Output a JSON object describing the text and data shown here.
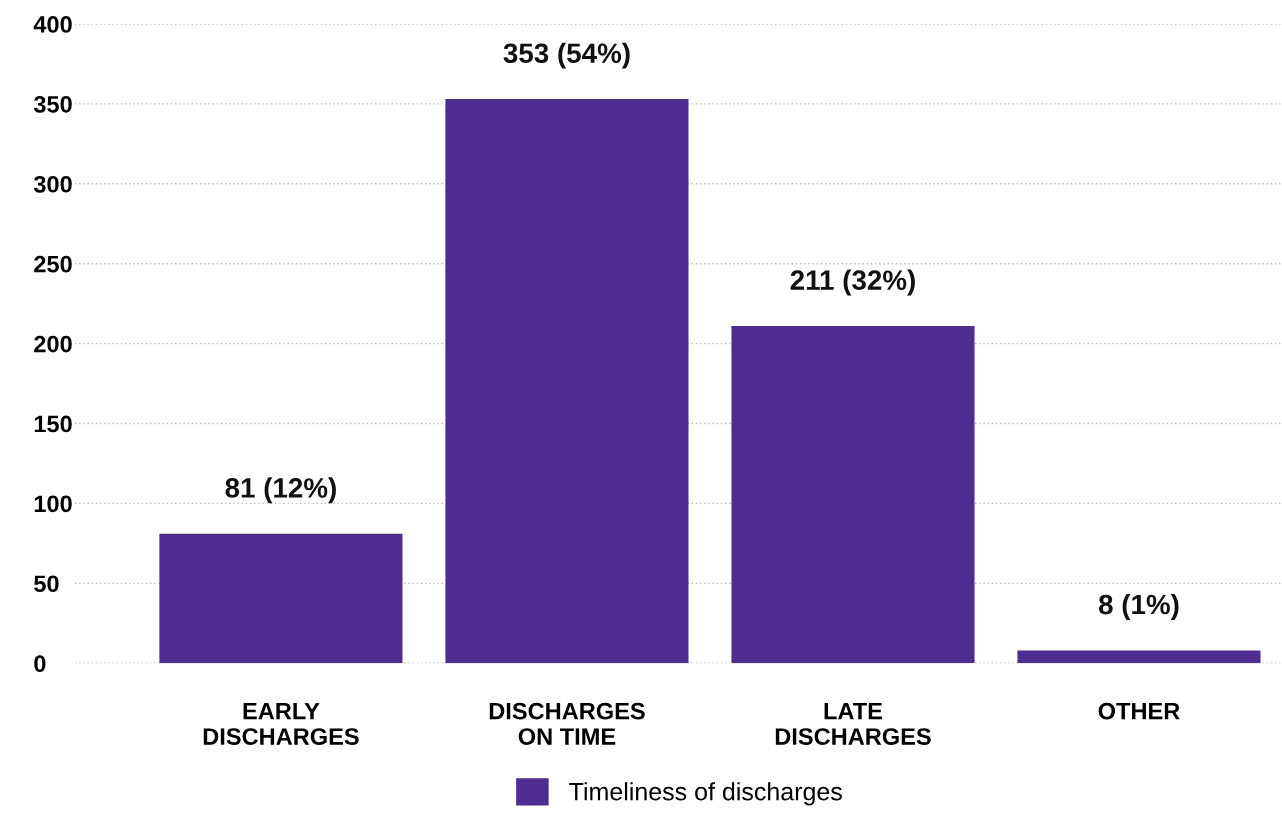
{
  "chart_data": {
    "type": "bar",
    "categories": [
      "EARLY\nDISCHARGES",
      "DISCHARGES\nON TIME",
      "LATE\nDISCHARGES",
      "OTHER"
    ],
    "series": [
      {
        "name": "Timeliness of discharges",
        "color": "#4e2d91",
        "values": [
          81,
          353,
          211,
          8
        ],
        "value_labels": [
          "81 (12%)",
          "353 (54%)",
          "211 (32%)",
          "8 (1%)"
        ]
      }
    ],
    "ylim": [
      0,
      400
    ],
    "yticks": [
      0,
      50,
      100,
      150,
      200,
      250,
      300,
      350,
      400
    ],
    "grid": "y",
    "legend": "bottom"
  }
}
